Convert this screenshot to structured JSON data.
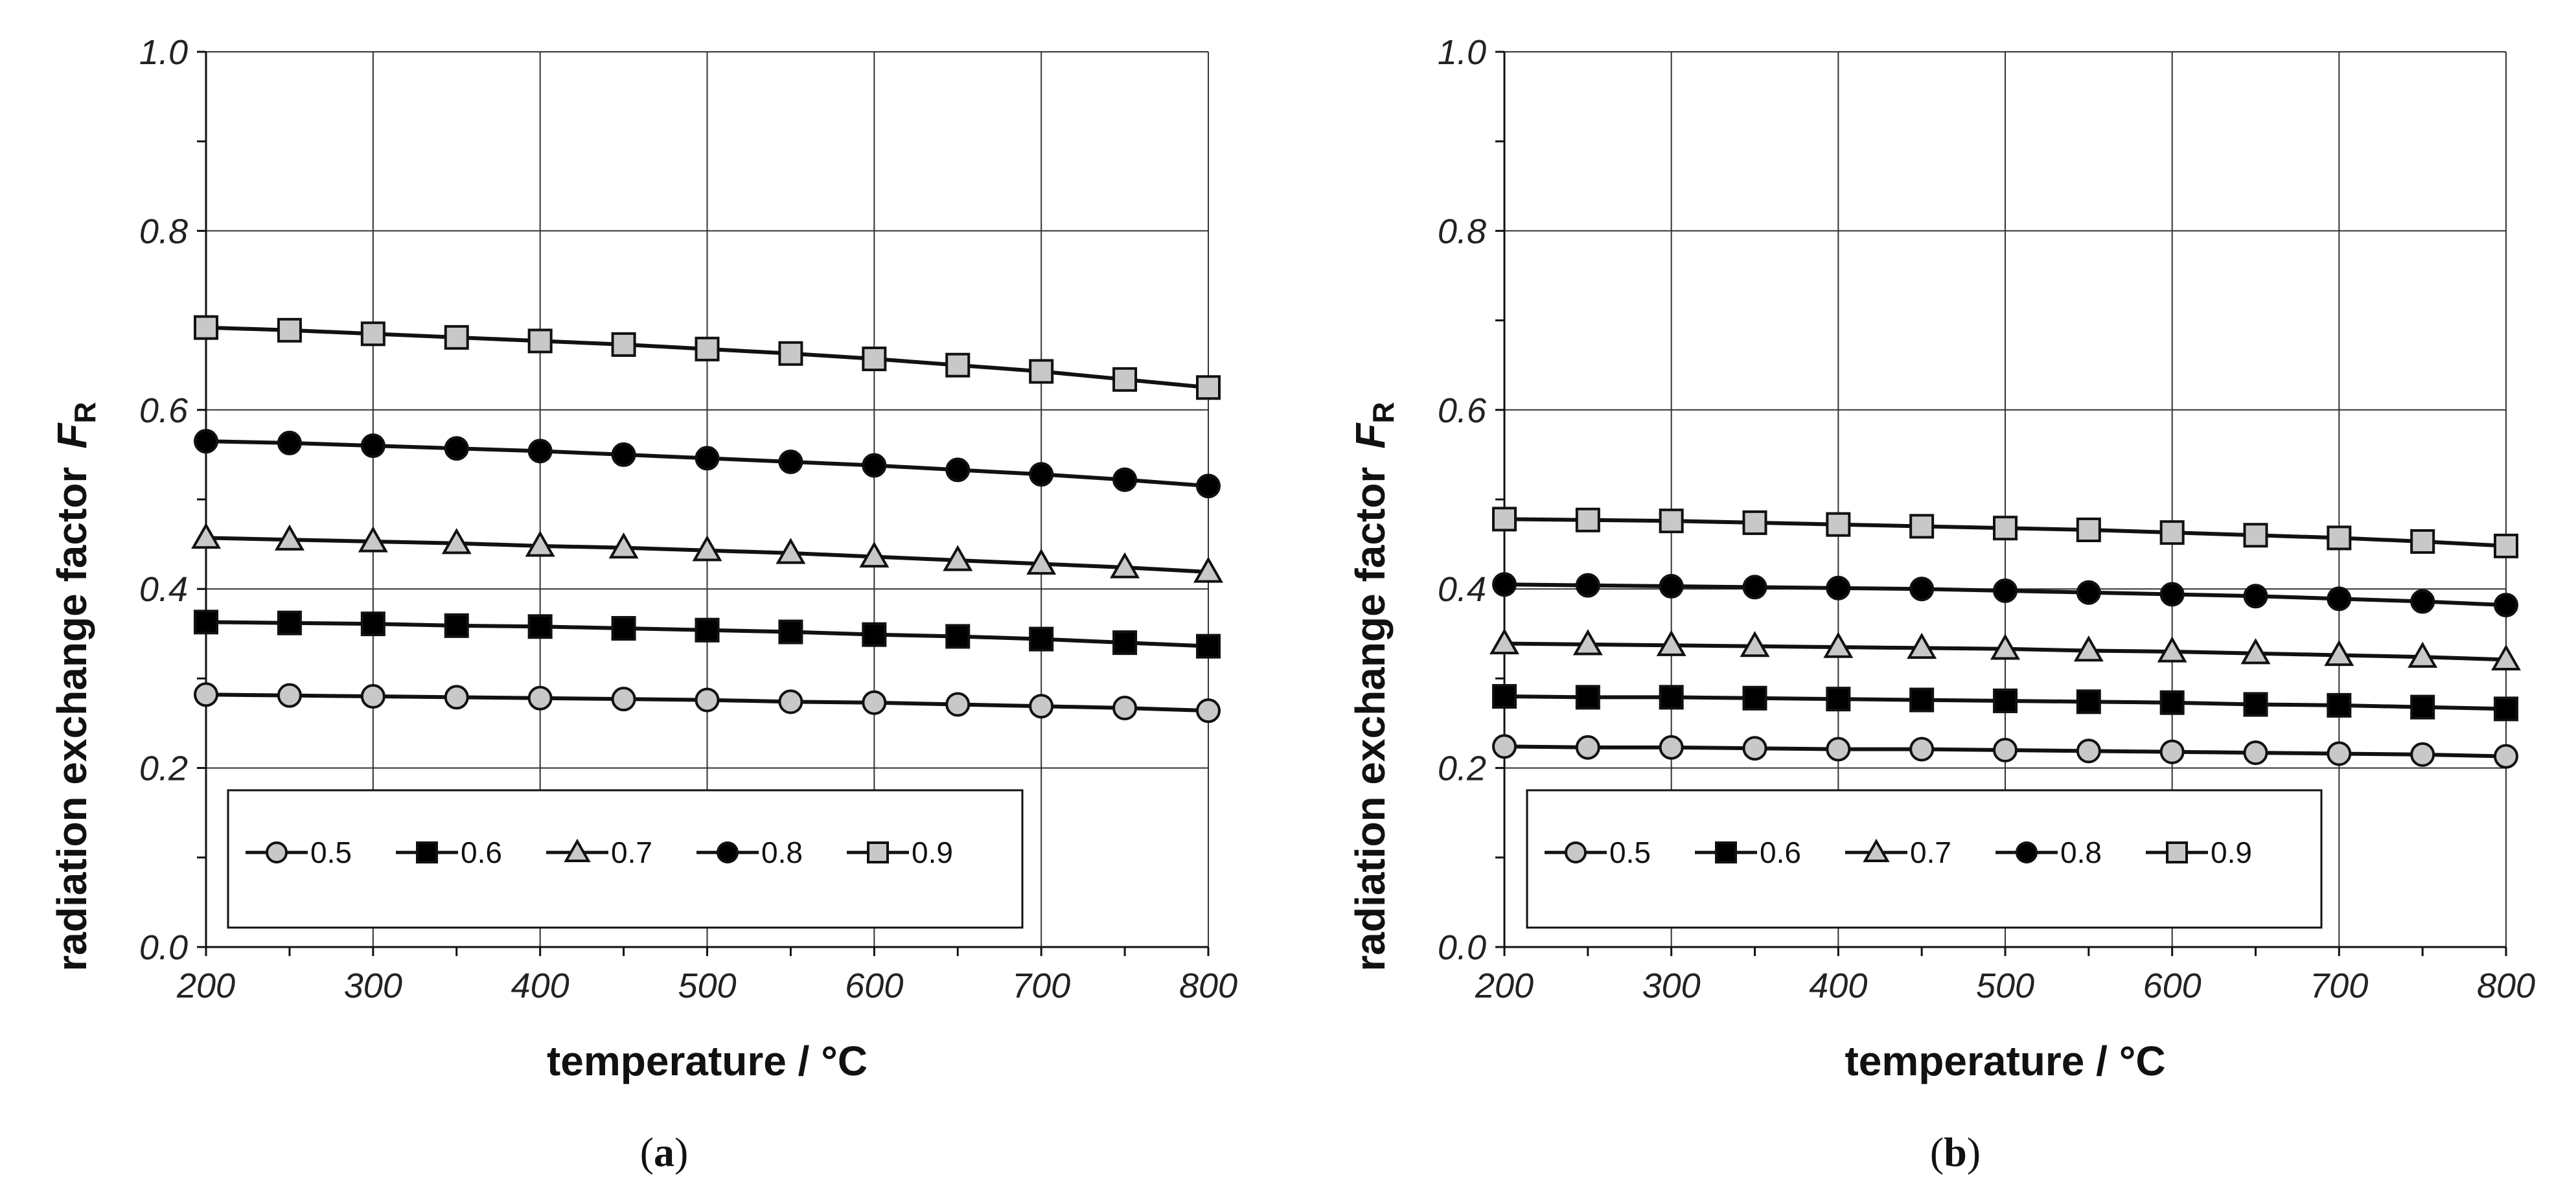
{
  "chart_data": [
    {
      "type": "line",
      "panel_label": "(a)",
      "panel_label_parts": [
        "(",
        "a",
        ")"
      ],
      "xlabel": "temperature / °C",
      "ylabel": "radiation exchange factor",
      "ylabel_symbol": "F",
      "ylabel_subscript": "R",
      "xlim": [
        200,
        800
      ],
      "ylim": [
        0.0,
        1.0
      ],
      "x_ticks": [
        "200",
        "300",
        "400",
        "500",
        "600",
        "700",
        "800"
      ],
      "y_ticks": [
        "0.0",
        "0.2",
        "0.4",
        "0.6",
        "0.8",
        "1.0"
      ],
      "grid": true,
      "legend_position": "bottom-left",
      "x": [
        200,
        250,
        300,
        350,
        400,
        450,
        500,
        550,
        600,
        650,
        700,
        750,
        800
      ],
      "series": [
        {
          "name": "0.5",
          "marker": "circle",
          "fill": "#c8c8c8",
          "values": [
            0.282,
            0.281,
            0.28,
            0.279,
            0.278,
            0.277,
            0.276,
            0.274,
            0.273,
            0.271,
            0.269,
            0.267,
            0.264
          ]
        },
        {
          "name": "0.6",
          "marker": "square",
          "fill": "#000000",
          "values": [
            0.363,
            0.362,
            0.361,
            0.359,
            0.358,
            0.356,
            0.354,
            0.352,
            0.349,
            0.347,
            0.344,
            0.34,
            0.336
          ]
        },
        {
          "name": "0.7",
          "marker": "triangle",
          "fill": "#c8c8c8",
          "values": [
            0.457,
            0.455,
            0.453,
            0.451,
            0.448,
            0.446,
            0.443,
            0.44,
            0.436,
            0.432,
            0.428,
            0.424,
            0.419
          ]
        },
        {
          "name": "0.8",
          "marker": "circle",
          "fill": "#000000",
          "values": [
            0.565,
            0.563,
            0.56,
            0.557,
            0.554,
            0.55,
            0.546,
            0.542,
            0.538,
            0.533,
            0.528,
            0.522,
            0.515
          ]
        },
        {
          "name": "0.9",
          "marker": "square",
          "fill": "#c8c8c8",
          "values": [
            0.692,
            0.689,
            0.685,
            0.681,
            0.677,
            0.673,
            0.668,
            0.663,
            0.657,
            0.65,
            0.643,
            0.634,
            0.625
          ]
        }
      ]
    },
    {
      "type": "line",
      "panel_label": "(b)",
      "panel_label_parts": [
        "(",
        "b",
        ")"
      ],
      "xlabel": "temperature / °C",
      "ylabel": "radiation exchange factor",
      "ylabel_symbol": "F",
      "ylabel_subscript": "R",
      "xlim": [
        200,
        800
      ],
      "ylim": [
        0.0,
        1.0
      ],
      "x_ticks": [
        "200",
        "300",
        "400",
        "500",
        "600",
        "700",
        "800"
      ],
      "y_ticks": [
        "0.0",
        "0.2",
        "0.4",
        "0.6",
        "0.8",
        "1.0"
      ],
      "grid": true,
      "legend_position": "bottom-left",
      "x": [
        200,
        250,
        300,
        350,
        400,
        450,
        500,
        550,
        600,
        650,
        700,
        750,
        800
      ],
      "series": [
        {
          "name": "0.5",
          "marker": "circle",
          "fill": "#c8c8c8",
          "values": [
            0.224,
            0.223,
            0.223,
            0.222,
            0.221,
            0.221,
            0.22,
            0.219,
            0.218,
            0.217,
            0.216,
            0.215,
            0.213
          ]
        },
        {
          "name": "0.6",
          "marker": "square",
          "fill": "#000000",
          "values": [
            0.28,
            0.279,
            0.279,
            0.278,
            0.277,
            0.276,
            0.275,
            0.274,
            0.273,
            0.271,
            0.27,
            0.268,
            0.266
          ]
        },
        {
          "name": "0.7",
          "marker": "triangle",
          "fill": "#c8c8c8",
          "values": [
            0.339,
            0.338,
            0.337,
            0.336,
            0.335,
            0.334,
            0.333,
            0.331,
            0.33,
            0.328,
            0.326,
            0.324,
            0.321
          ]
        },
        {
          "name": "0.8",
          "marker": "circle",
          "fill": "#000000",
          "values": [
            0.405,
            0.404,
            0.403,
            0.402,
            0.401,
            0.4,
            0.398,
            0.396,
            0.394,
            0.392,
            0.389,
            0.386,
            0.382
          ]
        },
        {
          "name": "0.9",
          "marker": "square",
          "fill": "#c8c8c8",
          "values": [
            0.478,
            0.477,
            0.476,
            0.474,
            0.472,
            0.47,
            0.468,
            0.466,
            0.463,
            0.46,
            0.457,
            0.453,
            0.448
          ]
        }
      ]
    }
  ]
}
